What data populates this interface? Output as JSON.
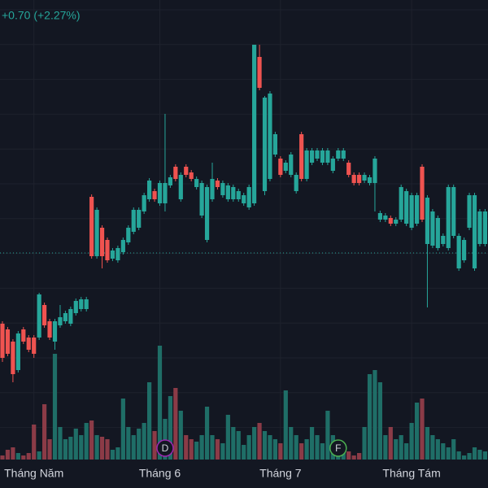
{
  "chart_data": {
    "type": "candlestick",
    "change_label": "+0.70 (+2.27%)",
    "categories": [
      null,
      null,
      null,
      null,
      null,
      null,
      "Tháng Năm",
      null,
      null,
      null,
      null,
      null,
      null,
      null,
      null,
      null,
      null,
      null,
      null,
      null,
      null,
      null,
      null,
      null,
      null,
      null,
      null,
      null,
      null,
      null,
      "Tháng 6",
      null,
      null,
      null,
      null,
      null,
      null,
      null,
      null,
      null,
      null,
      null,
      null,
      null,
      null,
      null,
      null,
      null,
      null,
      null,
      null,
      null,
      null,
      "Tháng 7",
      null,
      null,
      null,
      null,
      null,
      null,
      null,
      null,
      null,
      null,
      null,
      null,
      null,
      null,
      null,
      null,
      null,
      null,
      null,
      null,
      null,
      null,
      null,
      null,
      "Tháng Tám",
      null,
      null,
      null,
      null,
      null,
      null,
      null,
      null,
      null,
      null,
      null,
      null,
      null,
      null
    ],
    "ohlc": [
      [
        20.2,
        20.5,
        15.5,
        16.0
      ],
      [
        19.5,
        19.8,
        16.2,
        16.5
      ],
      [
        18.0,
        18.3,
        13.0,
        14.0
      ],
      [
        14.5,
        19.3,
        14.2,
        19.0
      ],
      [
        19.5,
        19.8,
        17.7,
        18.0
      ],
      [
        18.5,
        18.8,
        16.7,
        17.0
      ],
      [
        18.5,
        18.8,
        16.0,
        16.5
      ],
      [
        18.5,
        24.0,
        18.2,
        23.8
      ],
      [
        22.5,
        22.8,
        19.7,
        20.0
      ],
      [
        20.5,
        20.8,
        18.2,
        18.5
      ],
      [
        18.0,
        20.8,
        17.0,
        20.5
      ],
      [
        20.0,
        22.5,
        19.7,
        21.0
      ],
      [
        20.5,
        21.8,
        20.2,
        21.5
      ],
      [
        20.2,
        22.3,
        19.9,
        22.0
      ],
      [
        21.5,
        23.3,
        21.2,
        23.0
      ],
      [
        22.0,
        23.5,
        21.7,
        23.2
      ],
      [
        22.0,
        23.5,
        21.7,
        23.2
      ],
      [
        35.8,
        36.1,
        28.2,
        28.5
      ],
      [
        28.5,
        34.5,
        28.2,
        34.2
      ],
      [
        32.0,
        32.3,
        27.0,
        28.5
      ],
      [
        30.5,
        30.8,
        27.7,
        28.0
      ],
      [
        28.2,
        29.5,
        27.9,
        29.2
      ],
      [
        28.0,
        29.8,
        27.7,
        29.5
      ],
      [
        29.0,
        30.8,
        28.7,
        30.5
      ],
      [
        30.2,
        32.3,
        29.9,
        32.0
      ],
      [
        31.5,
        34.5,
        31.2,
        34.2
      ],
      [
        32.0,
        34.5,
        31.7,
        34.2
      ],
      [
        34.0,
        36.3,
        33.7,
        36.0
      ],
      [
        35.5,
        38.1,
        35.2,
        37.8
      ],
      [
        36.5,
        36.8,
        35.2,
        35.5
      ],
      [
        35.0,
        37.8,
        34.7,
        37.5
      ],
      [
        35.0,
        46.0,
        34.0,
        37.5
      ],
      [
        37.2,
        38.5,
        36.9,
        38.2
      ],
      [
        39.5,
        39.8,
        37.7,
        38.0
      ],
      [
        35.5,
        38.8,
        35.2,
        38.5
      ],
      [
        39.5,
        39.8,
        38.2,
        38.5
      ],
      [
        38.8,
        39.1,
        37.7,
        38.0
      ],
      [
        37.0,
        38.3,
        36.7,
        38.0
      ],
      [
        33.5,
        37.8,
        33.2,
        37.5
      ],
      [
        30.5,
        37.3,
        30.2,
        37.0
      ],
      [
        35.5,
        40.0,
        35.2,
        38.0
      ],
      [
        37.8,
        38.1,
        36.7,
        37.0
      ],
      [
        36.0,
        37.8,
        35.7,
        37.5
      ],
      [
        35.5,
        37.5,
        35.2,
        37.2
      ],
      [
        35.5,
        37.3,
        35.2,
        37.0
      ],
      [
        35.5,
        36.8,
        35.2,
        36.5
      ],
      [
        35.0,
        36.3,
        34.7,
        36.0
      ],
      [
        34.5,
        37.3,
        34.2,
        37.0
      ],
      [
        35.0,
        54.5,
        34.7,
        54.5
      ],
      [
        53.0,
        54.5,
        48.9,
        49.2
      ],
      [
        36.5,
        48.2,
        36.0,
        48.0
      ],
      [
        38.0,
        48.8,
        37.7,
        48.5
      ],
      [
        41.0,
        43.8,
        40.7,
        43.5
      ],
      [
        40.5,
        40.8,
        38.2,
        38.5
      ],
      [
        39.0,
        40.3,
        38.7,
        40.0
      ],
      [
        38.5,
        41.3,
        38.2,
        41.0
      ],
      [
        36.5,
        38.8,
        36.2,
        38.5
      ],
      [
        43.5,
        43.8,
        37.7,
        38.0
      ],
      [
        38.0,
        41.8,
        37.7,
        41.5
      ],
      [
        40.0,
        41.8,
        39.7,
        41.5
      ],
      [
        40.5,
        41.8,
        40.2,
        41.5
      ],
      [
        40.0,
        41.8,
        39.7,
        41.5
      ],
      [
        40.0,
        41.8,
        39.7,
        41.5
      ],
      [
        39.0,
        40.8,
        38.7,
        40.5
      ],
      [
        40.5,
        41.8,
        40.2,
        41.5
      ],
      [
        40.5,
        41.8,
        40.2,
        41.5
      ],
      [
        40.0,
        40.3,
        38.2,
        38.5
      ],
      [
        38.5,
        38.8,
        37.2,
        37.5
      ],
      [
        38.5,
        38.8,
        37.2,
        37.5
      ],
      [
        37.8,
        38.8,
        37.5,
        38.5
      ],
      [
        37.5,
        38.5,
        37.2,
        38.2
      ],
      [
        37.5,
        40.8,
        34.0,
        40.5
      ],
      [
        33.0,
        34.1,
        32.7,
        33.8
      ],
      [
        33.0,
        33.8,
        32.7,
        33.5
      ],
      [
        33.2,
        33.5,
        32.2,
        32.5
      ],
      [
        32.5,
        33.3,
        32.2,
        33.0
      ],
      [
        33.0,
        37.3,
        32.7,
        37.0
      ],
      [
        32.5,
        36.8,
        32.2,
        36.5
      ],
      [
        32.0,
        36.3,
        31.7,
        36.0
      ],
      [
        32.5,
        36.3,
        32.2,
        36.0
      ],
      [
        39.5,
        39.8,
        32.7,
        33.0
      ],
      [
        30.0,
        36.0,
        22.2,
        35.7
      ],
      [
        29.8,
        34.3,
        29.5,
        34.0
      ],
      [
        29.5,
        33.5,
        29.2,
        33.2
      ],
      [
        30.0,
        31.3,
        29.7,
        31.0
      ],
      [
        29.5,
        37.3,
        29.2,
        37.0
      ],
      [
        31.0,
        37.3,
        30.7,
        37.0
      ],
      [
        27.0,
        31.3,
        26.7,
        31.0
      ],
      [
        28.0,
        30.8,
        27.7,
        30.5
      ],
      [
        32.0,
        36.3,
        31.7,
        36.0
      ],
      [
        27.0,
        36.3,
        26.7,
        36.0
      ],
      [
        30.0,
        34.3,
        29.7,
        34.0
      ],
      [
        30.0,
        34.3,
        29.7,
        34.0
      ]
    ],
    "volume": [
      5,
      12,
      15,
      8,
      5,
      8,
      43,
      10,
      68,
      25,
      130,
      40,
      25,
      28,
      38,
      30,
      45,
      48,
      30,
      28,
      25,
      12,
      15,
      75,
      40,
      30,
      38,
      45,
      95,
      35,
      140,
      50,
      78,
      88,
      60,
      30,
      25,
      22,
      30,
      65,
      30,
      25,
      20,
      55,
      40,
      35,
      18,
      30,
      40,
      45,
      35,
      30,
      25,
      20,
      85,
      40,
      30,
      20,
      25,
      40,
      30,
      20,
      60,
      30,
      20,
      15,
      10,
      5,
      8,
      40,
      105,
      110,
      95,
      30,
      40,
      25,
      30,
      20,
      45,
      70,
      75,
      40,
      30,
      25,
      20,
      15,
      25,
      10,
      5,
      8,
      15,
      12,
      10
    ],
    "price_line": 28.9,
    "events": [
      {
        "label": "D",
        "index": 31,
        "color": "#9c27b0"
      },
      {
        "label": "F",
        "index": 64,
        "color": "#4caf50"
      }
    ],
    "ylim": [
      0,
      60
    ],
    "volume_ylim": [
      0,
      160
    ],
    "up_color": "#26a69a",
    "down_color": "#ef5350",
    "volume_up_color": "#1f6e67",
    "volume_down_color": "#8b3b47"
  }
}
